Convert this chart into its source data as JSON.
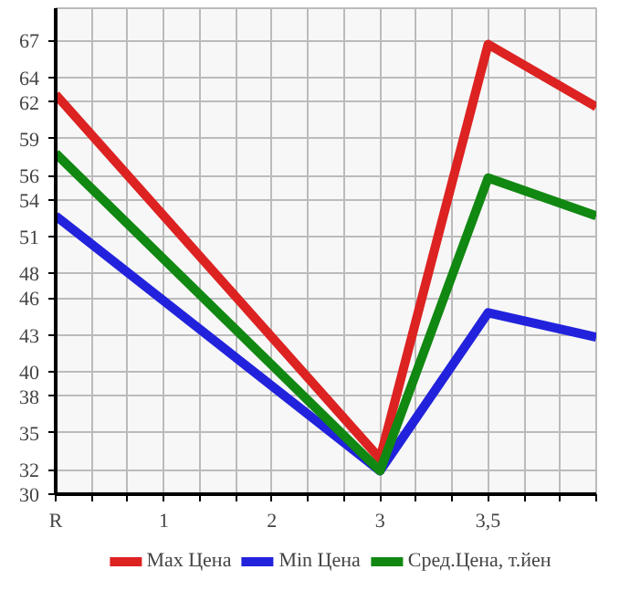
{
  "chart_data": {
    "type": "line",
    "categories": [
      "R",
      "1",
      "2",
      "3",
      "3,5",
      null
    ],
    "series": [
      {
        "name": "Max Цена",
        "color": "#dd2222",
        "values": [
          62.6,
          null,
          null,
          32.9,
          66.7,
          61.6
        ]
      },
      {
        "name": "Min Цена",
        "color": "#2222dd",
        "values": [
          52.7,
          null,
          null,
          31.9,
          44.8,
          42.8
        ]
      },
      {
        "name": "Сред.Цена, т.йен",
        "color": "#118811",
        "values": [
          57.8,
          null,
          null,
          31.9,
          55.8,
          52.7
        ]
      }
    ],
    "ylim": [
      30,
      69.64
    ],
    "yticks": [
      30,
      32,
      35,
      38,
      40,
      43,
      46,
      48,
      51,
      54,
      56,
      59,
      62,
      64,
      67
    ],
    "grid": true,
    "legend": "bottom",
    "marker": "none",
    "line_style": "solid"
  }
}
